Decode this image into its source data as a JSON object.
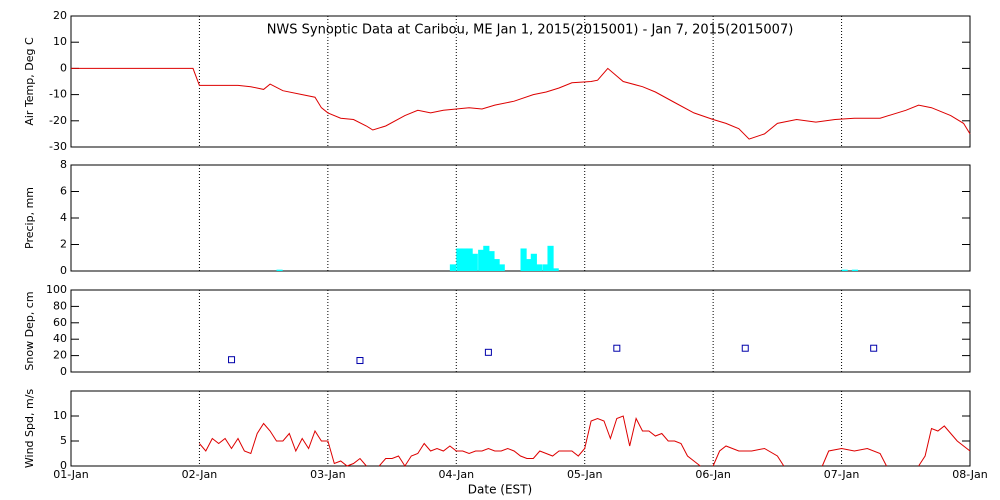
{
  "chart_data": [
    {
      "type": "line",
      "title": "NWS Synoptic Data at Caribou, ME   Jan  1, 2015(2015001) - Jan  7, 2015(2015007)",
      "y_label": "Air Temp, Deg C",
      "xlim": [
        0,
        7
      ],
      "ylim": [
        -30,
        20
      ],
      "yticks": [
        -30,
        -20,
        -10,
        0,
        10,
        20
      ],
      "series": [
        {
          "color": "#dd0000",
          "x": [
            0,
            0.95,
            1.0,
            1.3,
            1.4,
            1.5,
            1.55,
            1.65,
            1.8,
            1.9,
            1.95,
            2.0,
            2.1,
            2.2,
            2.3,
            2.35,
            2.45,
            2.6,
            2.7,
            2.8,
            2.9,
            3.0,
            3.1,
            3.2,
            3.3,
            3.45,
            3.6,
            3.7,
            3.8,
            3.9,
            4.05,
            4.1,
            4.18,
            4.3,
            4.45,
            4.55,
            4.7,
            4.85,
            5.0,
            5.1,
            5.2,
            5.28,
            5.4,
            5.5,
            5.65,
            5.8,
            5.95,
            6.1,
            6.3,
            6.5,
            6.6,
            6.7,
            6.85,
            6.95,
            7.0
          ],
          "values": [
            0,
            0,
            -6.5,
            -6.5,
            -7,
            -8,
            -6,
            -8.5,
            -10,
            -11,
            -15,
            -17,
            -19,
            -19.5,
            -22,
            -23.5,
            -22,
            -18,
            -16,
            -17,
            -16,
            -15.5,
            -15,
            -15.5,
            -14,
            -12.5,
            -10,
            -9,
            -7.5,
            -5.5,
            -5,
            -4.5,
            0,
            -5,
            -7,
            -9,
            -13,
            -17,
            -19.5,
            -21,
            -23,
            -27,
            -25,
            -21,
            -19.5,
            -20.5,
            -19.5,
            -19,
            -19,
            -16,
            -14,
            -15,
            -18,
            -21,
            -25
          ]
        }
      ]
    },
    {
      "type": "bar",
      "y_label": "Precip, mm",
      "xlim": [
        0,
        7
      ],
      "ylim": [
        0,
        8
      ],
      "yticks": [
        0,
        2,
        4,
        6,
        8
      ],
      "series": [
        {
          "color": "#00ffff",
          "x": [
            1.6,
            2.95,
            3.0,
            3.04,
            3.08,
            3.12,
            3.17,
            3.21,
            3.25,
            3.29,
            3.33,
            3.5,
            3.54,
            3.58,
            3.62,
            3.67,
            3.71,
            3.75,
            6.0,
            6.08
          ],
          "values": [
            0.1,
            0.5,
            1.7,
            1.7,
            1.7,
            1.3,
            1.6,
            1.9,
            1.5,
            0.9,
            0.5,
            1.7,
            0.9,
            1.3,
            0.5,
            0.5,
            1.9,
            0.2,
            0.1,
            0.1
          ]
        }
      ]
    },
    {
      "type": "scatter",
      "y_label": "Snow Dep, cm",
      "xlim": [
        0,
        7
      ],
      "ylim": [
        0,
        100
      ],
      "yticks": [
        0,
        20,
        40,
        60,
        80,
        100
      ],
      "series": [
        {
          "color": "#0000aa",
          "x": [
            1.25,
            2.25,
            3.25,
            4.25,
            5.25,
            6.25
          ],
          "values": [
            15,
            14,
            24,
            29,
            29,
            29
          ]
        }
      ]
    },
    {
      "type": "line",
      "y_label": "Wind Spd, m/s",
      "x_label": "Date (EST)",
      "xlim": [
        0,
        7
      ],
      "ylim": [
        0,
        15
      ],
      "yticks": [
        0,
        5,
        10
      ],
      "xticks": [
        {
          "value": 0,
          "label": "01-Jan"
        },
        {
          "value": 1,
          "label": "02-Jan"
        },
        {
          "value": 2,
          "label": "03-Jan"
        },
        {
          "value": 3,
          "label": "04-Jan"
        },
        {
          "value": 4,
          "label": "05-Jan"
        },
        {
          "value": 5,
          "label": "06-Jan"
        },
        {
          "value": 6,
          "label": "07-Jan"
        },
        {
          "value": 7,
          "label": "08-Jan"
        }
      ],
      "series": [
        {
          "color": "#dd0000",
          "x": [
            1.0,
            1.05,
            1.1,
            1.15,
            1.2,
            1.25,
            1.3,
            1.35,
            1.4,
            1.45,
            1.5,
            1.55,
            1.6,
            1.65,
            1.7,
            1.75,
            1.8,
            1.85,
            1.9,
            1.95,
            2.0,
            2.05,
            2.1,
            2.15,
            2.2,
            2.25,
            2.3,
            2.35,
            2.4,
            2.45,
            2.5,
            2.55,
            2.6,
            2.65,
            2.7,
            2.75,
            2.8,
            2.85,
            2.9,
            2.95,
            3.0,
            3.05,
            3.1,
            3.15,
            3.2,
            3.25,
            3.3,
            3.35,
            3.4,
            3.45,
            3.5,
            3.55,
            3.6,
            3.65,
            3.7,
            3.75,
            3.8,
            3.85,
            3.9,
            3.95,
            4.0,
            4.05,
            4.1,
            4.15,
            4.2,
            4.25,
            4.3,
            4.35,
            4.4,
            4.45,
            4.5,
            4.55,
            4.6,
            4.65,
            4.7,
            4.75,
            4.8,
            4.85,
            4.9,
            4.95,
            5.0,
            5.05,
            5.1,
            5.2,
            5.3,
            5.4,
            5.5,
            5.55,
            5.6,
            5.85,
            5.9,
            6.0,
            6.1,
            6.2,
            6.3,
            6.35,
            6.4,
            6.6,
            6.65,
            6.7,
            6.75,
            6.8,
            6.9,
            7.0
          ],
          "values": [
            4.5,
            3,
            5.5,
            4.5,
            5.5,
            3.5,
            5.5,
            3,
            2.5,
            6.5,
            8.5,
            7,
            5,
            5,
            6.5,
            3,
            5.5,
            3.5,
            7,
            5,
            5,
            0.5,
            1,
            0,
            0.5,
            1.5,
            0,
            null,
            0,
            1.5,
            1.5,
            2,
            0,
            2,
            2.5,
            4.5,
            3,
            3.5,
            3,
            4,
            3,
            3,
            2.5,
            3,
            3,
            3.5,
            3,
            3,
            3.5,
            3,
            2,
            1.5,
            1.5,
            3,
            2.5,
            2,
            3,
            3,
            3,
            2,
            3.5,
            9,
            9.5,
            9,
            5.5,
            9.5,
            10,
            4,
            9.5,
            7,
            7,
            6,
            6.5,
            5,
            5,
            4.5,
            2,
            1,
            0,
            null,
            0,
            3,
            4,
            3,
            3,
            3.5,
            2,
            0,
            null,
            0,
            3,
            3.5,
            3,
            3.5,
            2.5,
            0,
            null,
            0,
            2,
            7.5,
            7,
            8,
            5,
            3
          ]
        }
      ]
    }
  ]
}
